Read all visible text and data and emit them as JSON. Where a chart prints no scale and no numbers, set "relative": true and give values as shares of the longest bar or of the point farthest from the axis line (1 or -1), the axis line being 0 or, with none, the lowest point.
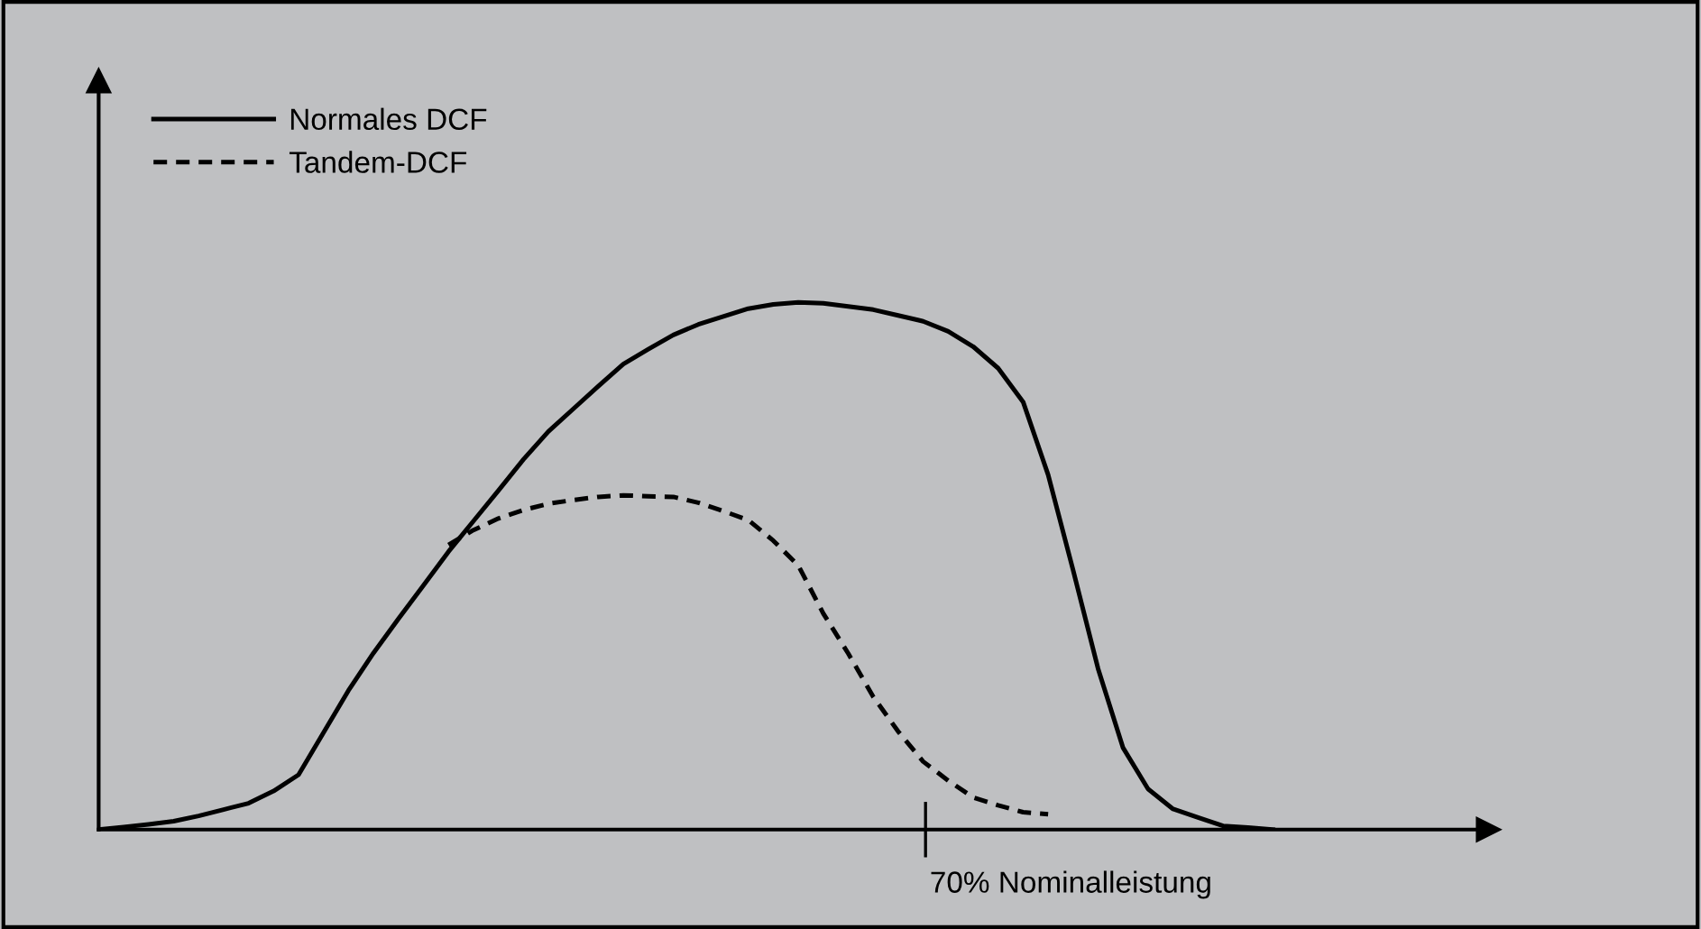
{
  "chart_data": {
    "type": "line",
    "relative": true,
    "annotations": [
      "70% Nominalleistung"
    ],
    "legend": "top left",
    "marker": "none",
    "categories": [
      null,
      null,
      null,
      null,
      null,
      null,
      null,
      null,
      null,
      null,
      null,
      null,
      null,
      null,
      null,
      null,
      null,
      null,
      null,
      null,
      null,
      null,
      null,
      null,
      null,
      null,
      null,
      null,
      null,
      null,
      null,
      null,
      null,
      null,
      null,
      null,
      null,
      null,
      null,
      null,
      null,
      null,
      null,
      null,
      null,
      null,
      null,
      null,
      null,
      null,
      null,
      null,
      null,
      null,
      null
    ],
    "series": [
      {
        "name": "Normales DCF",
        "color": "#000000",
        "line_style": "solid",
        "values": [
          0,
          0.005,
          0.01,
          0.016,
          0.026,
          0.038,
          0.05,
          0.073,
          0.104,
          0.184,
          0.264,
          0.335,
          0.4,
          0.463,
          0.527,
          0.585,
          0.643,
          0.702,
          0.755,
          0.798,
          0.841,
          0.883,
          0.911,
          0.938,
          0.958,
          0.973,
          0.988,
          0.996,
          1.0,
          0.998,
          0.992,
          0.986,
          0.975,
          0.964,
          0.945,
          0.916,
          0.875,
          0.811,
          0.673,
          0.492,
          0.305,
          0.155,
          0.077,
          0.039,
          0.023,
          0.007,
          0.004,
          0,
          null,
          null,
          null,
          null,
          null,
          null,
          null
        ]
      },
      {
        "name": "Tandem-DCF",
        "color": "#000000",
        "line_style": "dashed",
        "values": [
          null,
          null,
          null,
          null,
          null,
          null,
          null,
          null,
          null,
          null,
          null,
          null,
          null,
          null,
          0.54,
          0.568,
          0.59,
          0.606,
          0.618,
          0.625,
          0.631,
          0.634,
          0.632,
          0.631,
          0.62,
          0.604,
          0.587,
          0.548,
          0.501,
          0.41,
          0.334,
          0.252,
          0.186,
          0.129,
          0.093,
          0.061,
          0.046,
          0.033,
          0.029,
          null,
          null,
          null,
          null,
          null,
          null,
          null,
          null,
          null,
          null,
          null,
          null,
          null,
          null,
          null,
          null
        ]
      }
    ]
  }
}
